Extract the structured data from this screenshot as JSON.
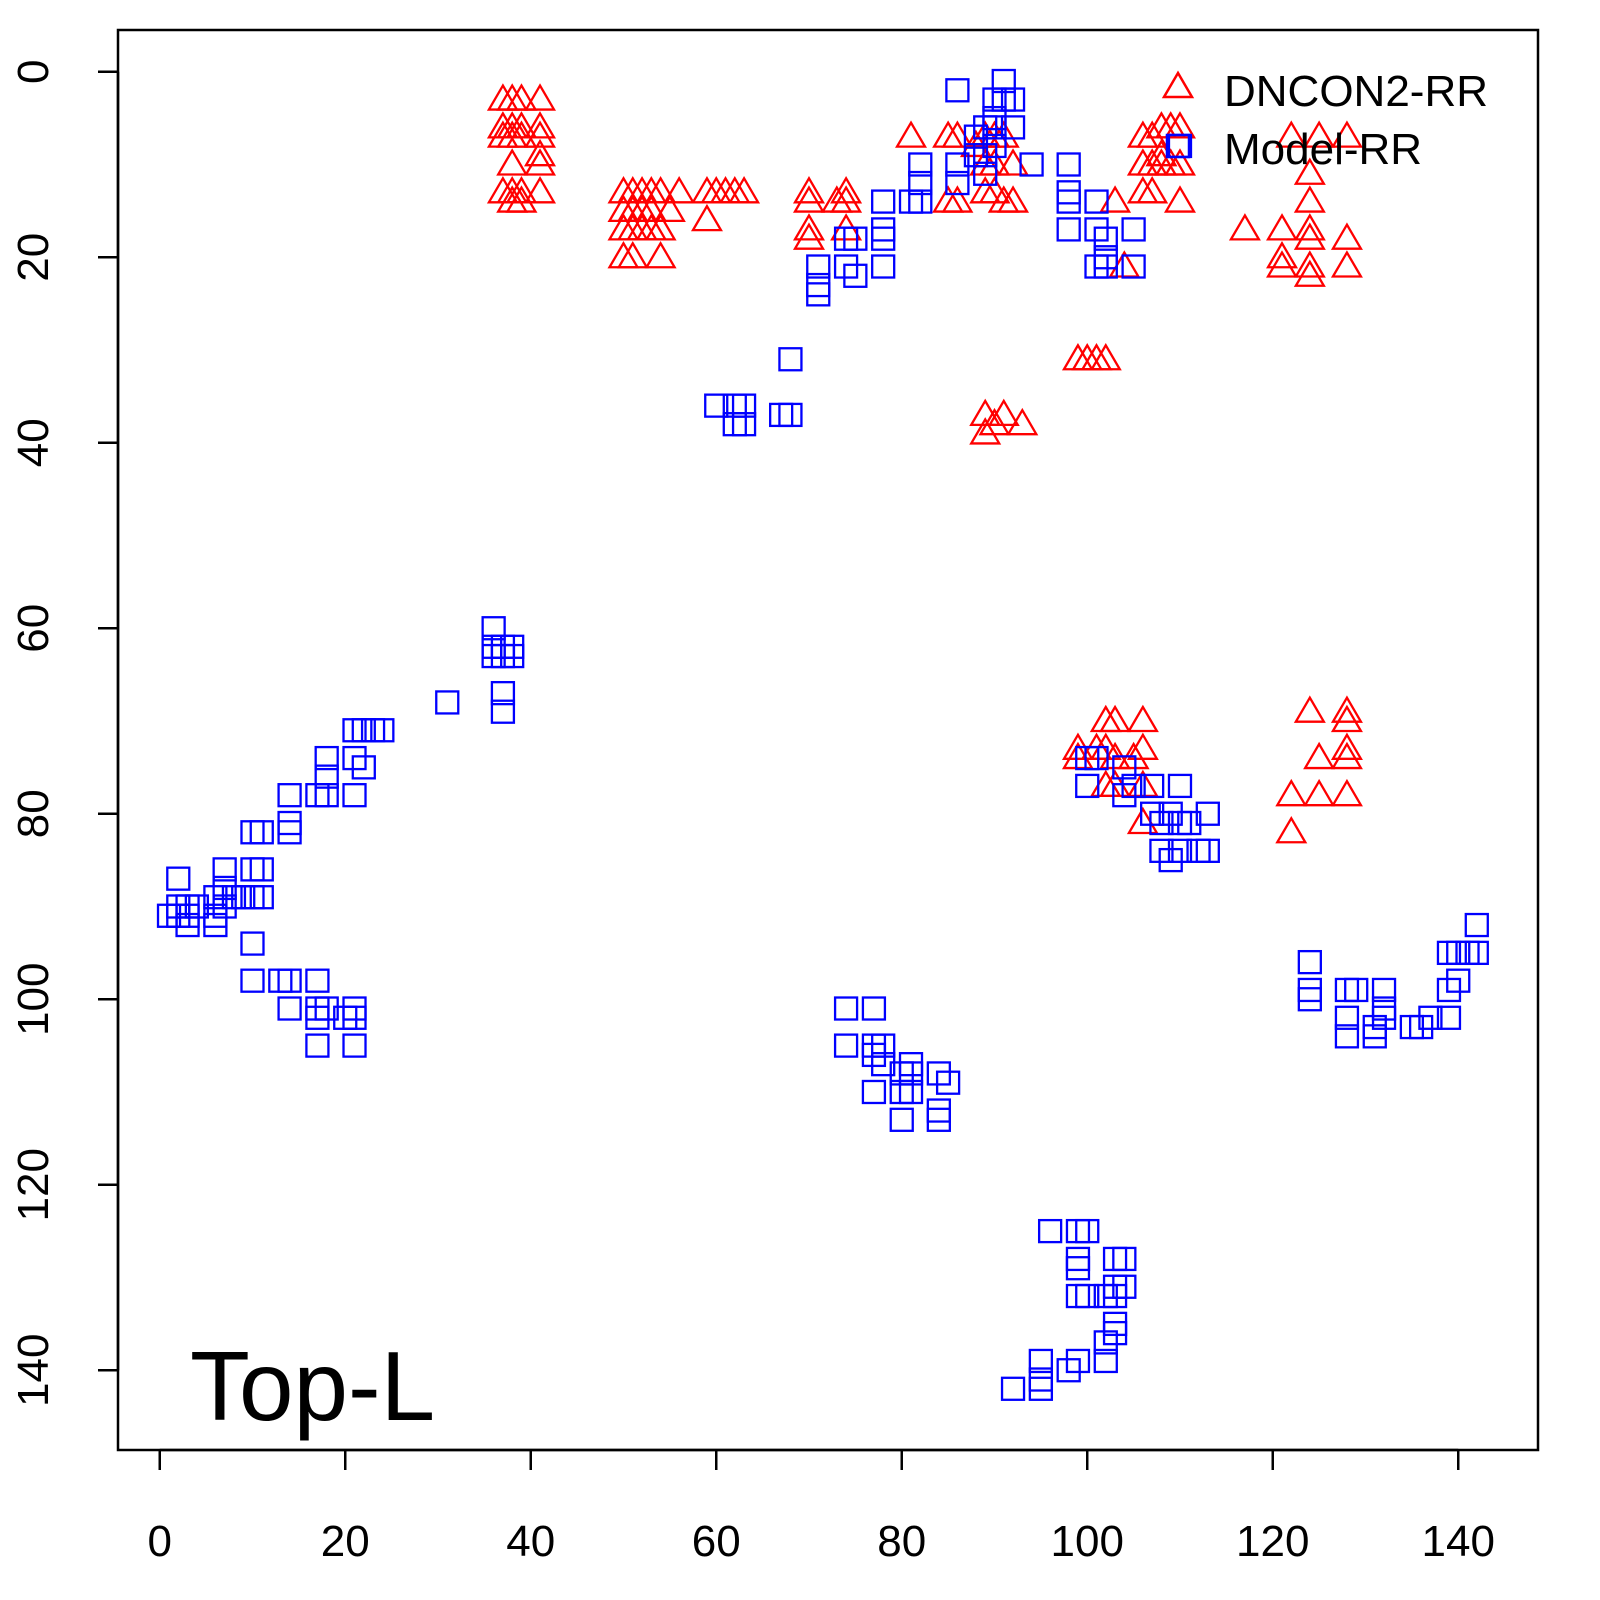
{
  "chart_data": {
    "type": "scatter",
    "title": "",
    "annotation": "Top-L",
    "xlabel": "",
    "ylabel": "",
    "xlim": [
      -4.5,
      148.6
    ],
    "ylim": [
      148.6,
      -4.5
    ],
    "y_inverted": true,
    "xticks": [
      0,
      20,
      40,
      60,
      80,
      100,
      120,
      140
    ],
    "yticks": [
      0,
      20,
      40,
      60,
      80,
      100,
      120,
      140
    ],
    "grid": false,
    "legend_position": "top-right",
    "series": [
      {
        "name": "DNCON2-RR",
        "marker": "triangle",
        "color": "#ff0000",
        "points": [
          [
            37,
            3
          ],
          [
            38,
            3
          ],
          [
            39,
            3
          ],
          [
            41,
            3
          ],
          [
            37,
            6
          ],
          [
            38,
            6
          ],
          [
            39,
            6
          ],
          [
            41,
            6
          ],
          [
            37,
            7
          ],
          [
            38,
            7
          ],
          [
            39,
            7
          ],
          [
            41,
            7
          ],
          [
            38,
            10
          ],
          [
            41,
            9
          ],
          [
            41,
            10
          ],
          [
            37,
            13
          ],
          [
            38,
            13
          ],
          [
            39,
            13
          ],
          [
            41,
            13
          ],
          [
            38,
            14
          ],
          [
            39,
            14
          ],
          [
            50,
            13
          ],
          [
            51,
            13
          ],
          [
            52,
            13
          ],
          [
            53,
            13
          ],
          [
            54,
            13
          ],
          [
            56,
            13
          ],
          [
            59,
            13
          ],
          [
            60,
            13
          ],
          [
            61,
            13
          ],
          [
            62,
            13
          ],
          [
            63,
            13
          ],
          [
            50,
            15
          ],
          [
            51,
            15
          ],
          [
            52,
            15
          ],
          [
            53,
            15
          ],
          [
            55,
            15
          ],
          [
            59,
            16
          ],
          [
            50,
            17
          ],
          [
            51,
            17
          ],
          [
            52,
            17
          ],
          [
            53,
            17
          ],
          [
            54,
            17
          ],
          [
            50,
            20
          ],
          [
            51,
            20
          ],
          [
            54,
            20
          ],
          [
            70,
            13
          ],
          [
            70,
            14
          ],
          [
            73,
            14
          ],
          [
            74,
            13
          ],
          [
            74,
            14
          ],
          [
            70,
            17
          ],
          [
            70,
            18
          ],
          [
            74,
            17
          ],
          [
            81,
            7
          ],
          [
            85,
            7
          ],
          [
            86,
            7
          ],
          [
            89,
            7
          ],
          [
            90,
            7
          ],
          [
            91,
            7
          ],
          [
            85,
            14
          ],
          [
            86,
            14
          ],
          [
            89,
            13
          ],
          [
            90,
            13
          ],
          [
            91,
            14
          ],
          [
            92,
            14
          ],
          [
            89,
            10
          ],
          [
            90,
            10
          ],
          [
            92,
            10
          ],
          [
            88,
            8
          ],
          [
            89,
            37
          ],
          [
            89,
            39
          ],
          [
            90,
            38
          ],
          [
            91,
            37
          ],
          [
            93,
            38
          ],
          [
            99,
            31
          ],
          [
            100,
            31
          ],
          [
            101,
            31
          ],
          [
            102,
            31
          ],
          [
            103,
            14
          ],
          [
            104,
            21
          ],
          [
            106,
            7
          ],
          [
            107,
            7
          ],
          [
            108,
            6
          ],
          [
            109,
            6
          ],
          [
            110,
            6
          ],
          [
            106,
            10
          ],
          [
            107,
            10
          ],
          [
            108,
            10
          ],
          [
            109,
            10
          ],
          [
            110,
            10
          ],
          [
            106,
            13
          ],
          [
            107,
            13
          ],
          [
            110,
            14
          ],
          [
            108,
            9
          ],
          [
            122,
            7
          ],
          [
            125,
            7
          ],
          [
            128,
            7
          ],
          [
            124,
            11
          ],
          [
            124,
            14
          ],
          [
            117,
            17
          ],
          [
            121,
            17
          ],
          [
            124,
            17
          ],
          [
            124,
            18
          ],
          [
            128,
            18
          ],
          [
            121,
            20
          ],
          [
            121,
            21
          ],
          [
            124,
            21
          ],
          [
            124,
            22
          ],
          [
            128,
            21
          ],
          [
            99,
            73
          ],
          [
            99,
            74
          ],
          [
            102,
            70
          ],
          [
            103,
            70
          ],
          [
            106,
            70
          ],
          [
            101,
            73
          ],
          [
            102,
            73
          ],
          [
            103,
            74
          ],
          [
            105,
            74
          ],
          [
            106,
            73
          ],
          [
            102,
            77
          ],
          [
            103,
            77
          ],
          [
            106,
            77
          ],
          [
            106,
            81
          ],
          [
            122,
            78
          ],
          [
            122,
            82
          ],
          [
            124,
            69
          ],
          [
            125,
            74
          ],
          [
            125,
            78
          ],
          [
            128,
            69
          ],
          [
            128,
            70
          ],
          [
            128,
            73
          ],
          [
            128,
            74
          ],
          [
            128,
            78
          ]
        ]
      },
      {
        "name": "Model-RR",
        "marker": "square",
        "color": "#0000ff",
        "points": [
          [
            86,
            2
          ],
          [
            91,
            1
          ],
          [
            91,
            3
          ],
          [
            90,
            3
          ],
          [
            90,
            5
          ],
          [
            92,
            3
          ],
          [
            90,
            6
          ],
          [
            92,
            6
          ],
          [
            89,
            6
          ],
          [
            88,
            7
          ],
          [
            90,
            8
          ],
          [
            89,
            9
          ],
          [
            89,
            11
          ],
          [
            88,
            9
          ],
          [
            94,
            10
          ],
          [
            82,
            10
          ],
          [
            82,
            12
          ],
          [
            86,
            10
          ],
          [
            86,
            12
          ],
          [
            81,
            14
          ],
          [
            82,
            14
          ],
          [
            78,
            14
          ],
          [
            78,
            18
          ],
          [
            78,
            17
          ],
          [
            78,
            21
          ],
          [
            74,
            18
          ],
          [
            75,
            18
          ],
          [
            74,
            21
          ],
          [
            75,
            22
          ],
          [
            71,
            21
          ],
          [
            71,
            23
          ],
          [
            71,
            24
          ],
          [
            98,
            10
          ],
          [
            98,
            13
          ],
          [
            98,
            14
          ],
          [
            98,
            17
          ],
          [
            101,
            14
          ],
          [
            101,
            17
          ],
          [
            102,
            18
          ],
          [
            105,
            17
          ],
          [
            101,
            21
          ],
          [
            102,
            20
          ],
          [
            102,
            21
          ],
          [
            105,
            21
          ],
          [
            110,
            8
          ],
          [
            68,
            31
          ],
          [
            60,
            36
          ],
          [
            62,
            36
          ],
          [
            63,
            36
          ],
          [
            62,
            38
          ],
          [
            63,
            38
          ],
          [
            67,
            37
          ],
          [
            68,
            37
          ],
          [
            36,
            60
          ],
          [
            36,
            62
          ],
          [
            37,
            62
          ],
          [
            38,
            62
          ],
          [
            36,
            63
          ],
          [
            37,
            63
          ],
          [
            38,
            63
          ],
          [
            31,
            68
          ],
          [
            37,
            67
          ],
          [
            37,
            69
          ],
          [
            21,
            71
          ],
          [
            22,
            71
          ],
          [
            23,
            71
          ],
          [
            24,
            71
          ],
          [
            18,
            74
          ],
          [
            21,
            74
          ],
          [
            22,
            75
          ],
          [
            18,
            76
          ],
          [
            14,
            78
          ],
          [
            17,
            78
          ],
          [
            18,
            78
          ],
          [
            21,
            78
          ],
          [
            14,
            81
          ],
          [
            14,
            82
          ],
          [
            10,
            82
          ],
          [
            11,
            82
          ],
          [
            7,
            86
          ],
          [
            10,
            86
          ],
          [
            11,
            86
          ],
          [
            2,
            87
          ],
          [
            7,
            88
          ],
          [
            6,
            89
          ],
          [
            8,
            89
          ],
          [
            9,
            89
          ],
          [
            10,
            89
          ],
          [
            11,
            89
          ],
          [
            7,
            90
          ],
          [
            2,
            90
          ],
          [
            3,
            90
          ],
          [
            4,
            90
          ],
          [
            1,
            91
          ],
          [
            2,
            91
          ],
          [
            3,
            91
          ],
          [
            6,
            91
          ],
          [
            3,
            92
          ],
          [
            6,
            92
          ],
          [
            10,
            94
          ],
          [
            10,
            98
          ],
          [
            13,
            98
          ],
          [
            14,
            98
          ],
          [
            17,
            98
          ],
          [
            14,
            101
          ],
          [
            17,
            101
          ],
          [
            18,
            101
          ],
          [
            21,
            101
          ],
          [
            17,
            102
          ],
          [
            20,
            102
          ],
          [
            21,
            102
          ],
          [
            17,
            105
          ],
          [
            21,
            105
          ],
          [
            74,
            101
          ],
          [
            77,
            101
          ],
          [
            74,
            105
          ],
          [
            77,
            105
          ],
          [
            78,
            105
          ],
          [
            77,
            106
          ],
          [
            78,
            107
          ],
          [
            81,
            107
          ],
          [
            77,
            110
          ],
          [
            80,
            108
          ],
          [
            81,
            108
          ],
          [
            84,
            108
          ],
          [
            80,
            110
          ],
          [
            81,
            110
          ],
          [
            85,
            109
          ],
          [
            84,
            112
          ],
          [
            84,
            113
          ],
          [
            80,
            113
          ],
          [
            96,
            125
          ],
          [
            99,
            125
          ],
          [
            100,
            125
          ],
          [
            99,
            128
          ],
          [
            99,
            129
          ],
          [
            103,
            128
          ],
          [
            104,
            128
          ],
          [
            99,
            132
          ],
          [
            100,
            132
          ],
          [
            102,
            132
          ],
          [
            103,
            132
          ],
          [
            103,
            131
          ],
          [
            104,
            131
          ],
          [
            103,
            135
          ],
          [
            103,
            136
          ],
          [
            102,
            137
          ],
          [
            102,
            139
          ],
          [
            99,
            139
          ],
          [
            98,
            140
          ],
          [
            95,
            139
          ],
          [
            95,
            141
          ],
          [
            95,
            142
          ],
          [
            92,
            142
          ],
          [
            124,
            96
          ],
          [
            124,
            99
          ],
          [
            124,
            100
          ],
          [
            128,
            99
          ],
          [
            129,
            99
          ],
          [
            128,
            102
          ],
          [
            128,
            104
          ],
          [
            131,
            103
          ],
          [
            131,
            104
          ],
          [
            132,
            99
          ],
          [
            132,
            101
          ],
          [
            132,
            102
          ],
          [
            135,
            103
          ],
          [
            136,
            103
          ],
          [
            137,
            102
          ],
          [
            139,
            102
          ],
          [
            139,
            99
          ],
          [
            140,
            98
          ],
          [
            139,
            95
          ],
          [
            140,
            95
          ],
          [
            141,
            95
          ],
          [
            142,
            95
          ],
          [
            142,
            92
          ],
          [
            100,
            74
          ],
          [
            101,
            74
          ],
          [
            100,
            77
          ],
          [
            104,
            75
          ],
          [
            104,
            78
          ],
          [
            105,
            77
          ],
          [
            107,
            77
          ],
          [
            110,
            77
          ],
          [
            107,
            80
          ],
          [
            108,
            81
          ],
          [
            109,
            80
          ],
          [
            110,
            81
          ],
          [
            111,
            81
          ],
          [
            113,
            80
          ],
          [
            108,
            84
          ],
          [
            109,
            85
          ],
          [
            110,
            84
          ],
          [
            112,
            84
          ],
          [
            113,
            84
          ]
        ]
      }
    ]
  }
}
